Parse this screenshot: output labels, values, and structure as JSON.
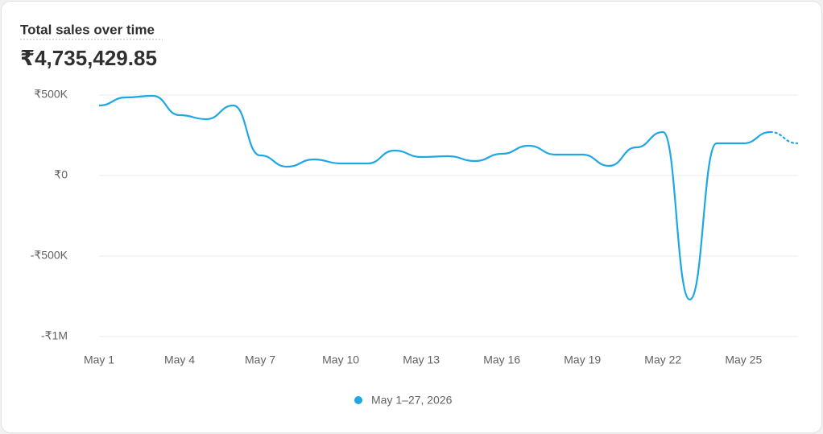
{
  "chart_data": {
    "type": "line",
    "title": "Total sales over time",
    "subtitle": "₹4,735,429.85",
    "categories": [
      "May 1",
      null,
      null,
      "May 4",
      null,
      null,
      "May 7",
      null,
      null,
      "May 10",
      null,
      null,
      "May 13",
      null,
      null,
      "May 16",
      null,
      null,
      "May 19",
      null,
      null,
      "May 22",
      null,
      null,
      "May 25",
      null,
      null
    ],
    "series": [
      {
        "name": "May 1–27, 2026",
        "color": "#1ea7e4",
        "values": [
          435000,
          485000,
          495000,
          375000,
          350000,
          435000,
          125000,
          55000,
          100000,
          75000,
          75000,
          155000,
          115000,
          120000,
          90000,
          135000,
          185000,
          130000,
          130000,
          60000,
          175000,
          270000,
          -770000,
          200000,
          200000,
          270000,
          200000
        ]
      }
    ],
    "ylim": [
      -1000000,
      500000
    ],
    "yticks": [
      {
        "value": 500000,
        "label": "₹500K"
      },
      {
        "value": 0,
        "label": "₹0"
      },
      {
        "value": -500000,
        "label": "-₹500K"
      },
      {
        "value": -1000000,
        "label": "-₹1M"
      }
    ],
    "grid": true
  }
}
